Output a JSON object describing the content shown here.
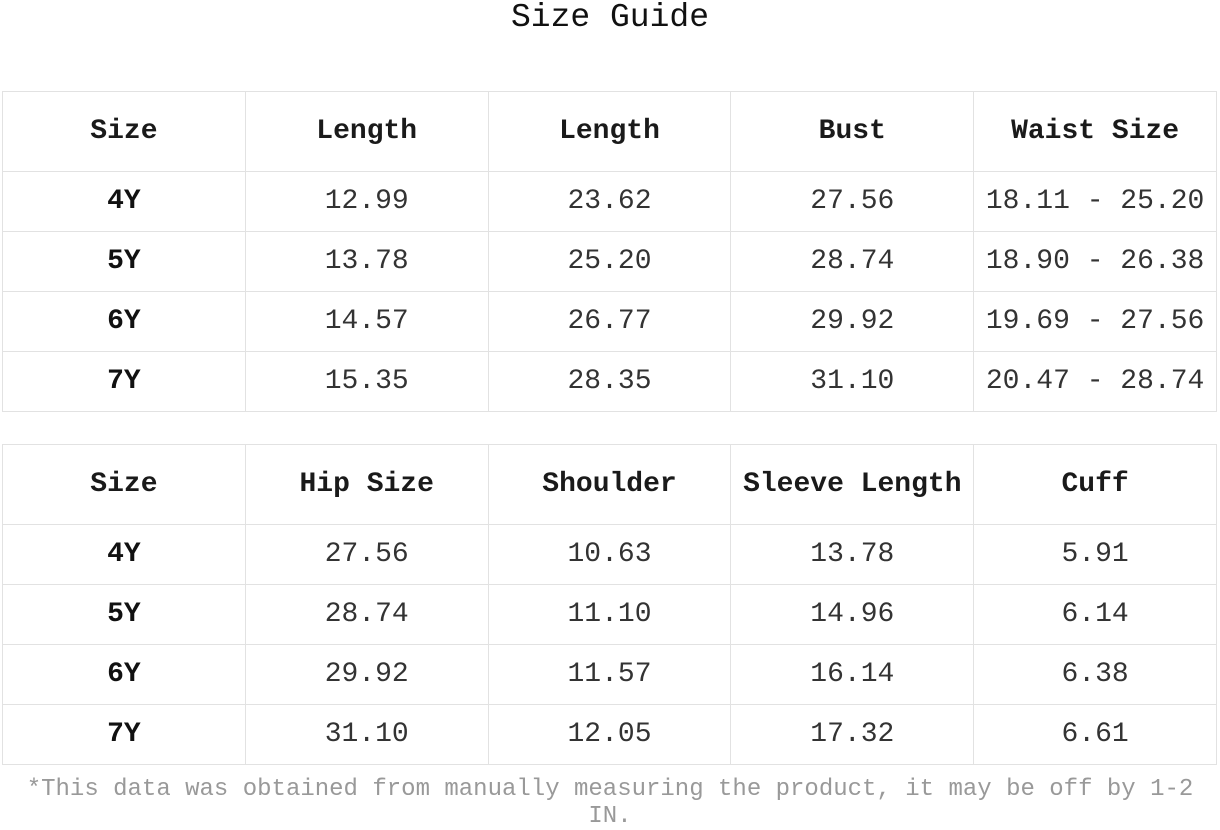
{
  "title": "Size Guide",
  "table1": {
    "headers": [
      "Size",
      "Length",
      "Length",
      "Bust",
      "Waist Size"
    ],
    "rows": [
      [
        "4Y",
        "12.99",
        "23.62",
        "27.56",
        "18.11 - 25.20"
      ],
      [
        "5Y",
        "13.78",
        "25.20",
        "28.74",
        "18.90 - 26.38"
      ],
      [
        "6Y",
        "14.57",
        "26.77",
        "29.92",
        "19.69 - 27.56"
      ],
      [
        "7Y",
        "15.35",
        "28.35",
        "31.10",
        "20.47 - 28.74"
      ]
    ]
  },
  "table2": {
    "headers": [
      "Size",
      "Hip Size",
      "Shoulder",
      "Sleeve Length",
      "Cuff"
    ],
    "rows": [
      [
        "4Y",
        "27.56",
        "10.63",
        "13.78",
        "5.91"
      ],
      [
        "5Y",
        "28.74",
        "11.10",
        "14.96",
        "6.14"
      ],
      [
        "6Y",
        "29.92",
        "11.57",
        "16.14",
        "6.38"
      ],
      [
        "7Y",
        "31.10",
        "12.05",
        "17.32",
        "6.61"
      ]
    ]
  },
  "note": "*This data was obtained from manually measuring the product, it may be off by 1-2 IN."
}
